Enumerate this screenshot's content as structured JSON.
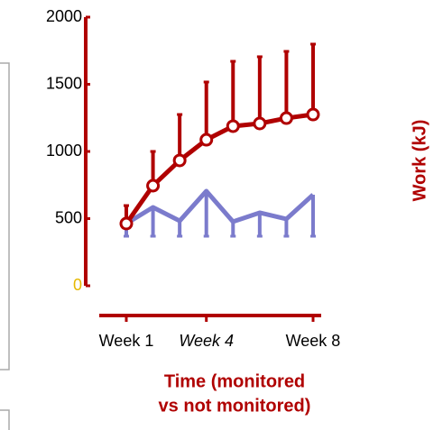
{
  "chart_data": {
    "type": "line",
    "categories": [
      "Week 1",
      null,
      null,
      "Week 4",
      null,
      null,
      null,
      "Week 8"
    ],
    "ylim": [
      0,
      2000
    ],
    "yticks": [
      0,
      500,
      1000,
      1500,
      2000
    ],
    "xlabel": [
      "Time   (monitored",
      "vs not monitored)"
    ],
    "ylabel": "Work (kJ)",
    "series": [
      {
        "color": "#7b7bcc",
        "values": [
          463,
          584,
          483,
          705,
          477,
          544,
          497,
          678
        ],
        "errors": [
          94,
          215,
          114,
          336,
          108,
          175,
          128,
          309
        ],
        "error_direction": "down"
      },
      {
        "color": "#b00000",
        "values": [
          463,
          745,
          933,
          1087,
          1188,
          1208,
          1248,
          1275
        ],
        "errors": [
          134,
          255,
          342,
          430,
          483,
          497,
          497,
          524
        ],
        "error_direction": "up"
      }
    ]
  }
}
